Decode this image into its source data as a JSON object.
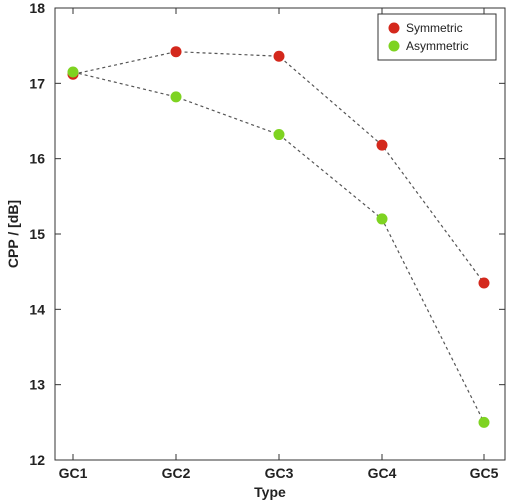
{
  "chart_data": {
    "type": "line",
    "title": "",
    "xlabel": "Type",
    "ylabel": "CPP / [dB]",
    "categories": [
      "GC1",
      "GC2",
      "GC3",
      "GC4",
      "GC5"
    ],
    "ylim": [
      12,
      18
    ],
    "yticks": [
      12,
      13,
      14,
      15,
      16,
      17,
      18
    ],
    "grid": false,
    "legend_position": "top-right",
    "series": [
      {
        "name": "Symmetric",
        "values": [
          17.12,
          17.42,
          17.36,
          16.18,
          14.35
        ],
        "color": "#d4281c"
      },
      {
        "name": "Asymmetric",
        "values": [
          17.15,
          16.82,
          16.32,
          15.2,
          12.5
        ],
        "color": "#7ed321"
      }
    ],
    "line_style": "dashed",
    "line_color": "#555555"
  }
}
